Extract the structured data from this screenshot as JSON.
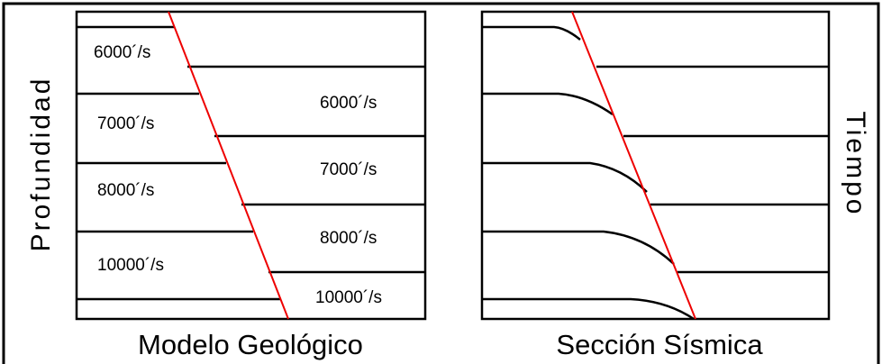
{
  "axis_labels": {
    "left": "Profundidad",
    "right": "Tiempo"
  },
  "panels": [
    {
      "title": "Modelo Geológico",
      "left_labels": [
        "6000´/s",
        "7000´/s",
        "8000´/s",
        "10000´/s"
      ],
      "right_labels": [
        "6000´/s",
        "7000´/s",
        "8000´/s",
        "10000´/s"
      ]
    },
    {
      "title": "Sección Sísmica"
    }
  ]
}
